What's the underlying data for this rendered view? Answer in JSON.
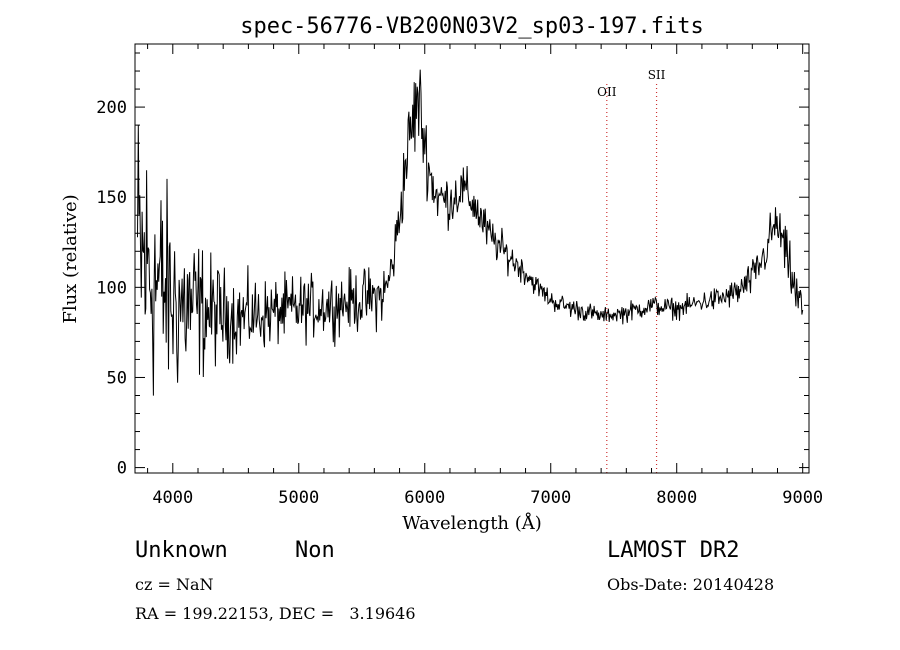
{
  "chart_data": {
    "type": "line",
    "title": "spec-56776-VB200N03V2_sp03-197.fits",
    "xlabel": "Wavelength (Å)",
    "ylabel": "Flux (relative)",
    "xlim": [
      3700,
      9050
    ],
    "ylim": [
      -3,
      235
    ],
    "xticks": [
      4000,
      5000,
      6000,
      7000,
      8000,
      9000
    ],
    "yticks": [
      0,
      50,
      100,
      150,
      200
    ],
    "grid": false,
    "line_color": "#000000",
    "marker_color": "#cc3333",
    "lines": [
      {
        "label": "OII",
        "x": 7445
      },
      {
        "label": "SII",
        "x": 7840
      }
    ],
    "series": [
      {
        "x": [
          3720,
          3800,
          3900,
          4000,
          4100,
          4200,
          4300,
          4400,
          4500,
          4600,
          4700,
          4800,
          4900,
          5000,
          5100,
          5200,
          5300,
          5400,
          5500,
          5600,
          5650,
          5700,
          5750,
          5800,
          5850,
          5900,
          5950,
          6000,
          6050,
          6100,
          6200,
          6300,
          6400,
          6500,
          6600,
          6700,
          6800,
          6900,
          7000,
          7100,
          7200,
          7300,
          7400,
          7500,
          7600,
          7700,
          7800,
          7900,
          8000,
          8100,
          8200,
          8300,
          8400,
          8500,
          8600,
          8700,
          8750,
          8800,
          8850,
          8900,
          8950,
          9000
        ],
        "values": [
          120,
          110,
          100,
          92,
          90,
          88,
          86,
          85,
          84,
          84,
          85,
          86,
          87,
          88,
          89,
          90,
          91,
          92,
          93,
          94,
          95,
          100,
          115,
          140,
          170,
          190,
          205,
          180,
          160,
          150,
          148,
          155,
          145,
          130,
          122,
          115,
          108,
          100,
          93,
          90,
          88,
          86,
          84,
          85,
          86,
          88,
          90,
          89,
          88,
          90,
          92,
          93,
          95,
          98,
          105,
          118,
          130,
          135,
          122,
          110,
          95,
          88
        ],
        "noise": [
          60,
          55,
          45,
          38,
          32,
          28,
          22,
          18,
          16,
          15,
          14,
          13,
          13,
          13,
          12,
          12,
          12,
          12,
          12,
          12,
          12,
          10,
          10,
          12,
          15,
          18,
          20,
          15,
          12,
          10,
          10,
          10,
          9,
          8,
          7,
          6,
          5,
          4,
          4,
          4,
          4,
          4,
          3,
          3,
          4,
          4,
          4,
          4,
          4,
          4,
          4,
          5,
          5,
          6,
          7,
          8,
          9,
          10,
          10,
          10,
          10,
          10
        ]
      }
    ]
  },
  "info": {
    "class": "Unknown",
    "subclass": "Non",
    "survey": "LAMOST DR2",
    "cz": "cz = NaN",
    "obs_date": "Obs-Date: 20140428",
    "radec": "RA = 199.22153, DEC =   3.19646"
  }
}
